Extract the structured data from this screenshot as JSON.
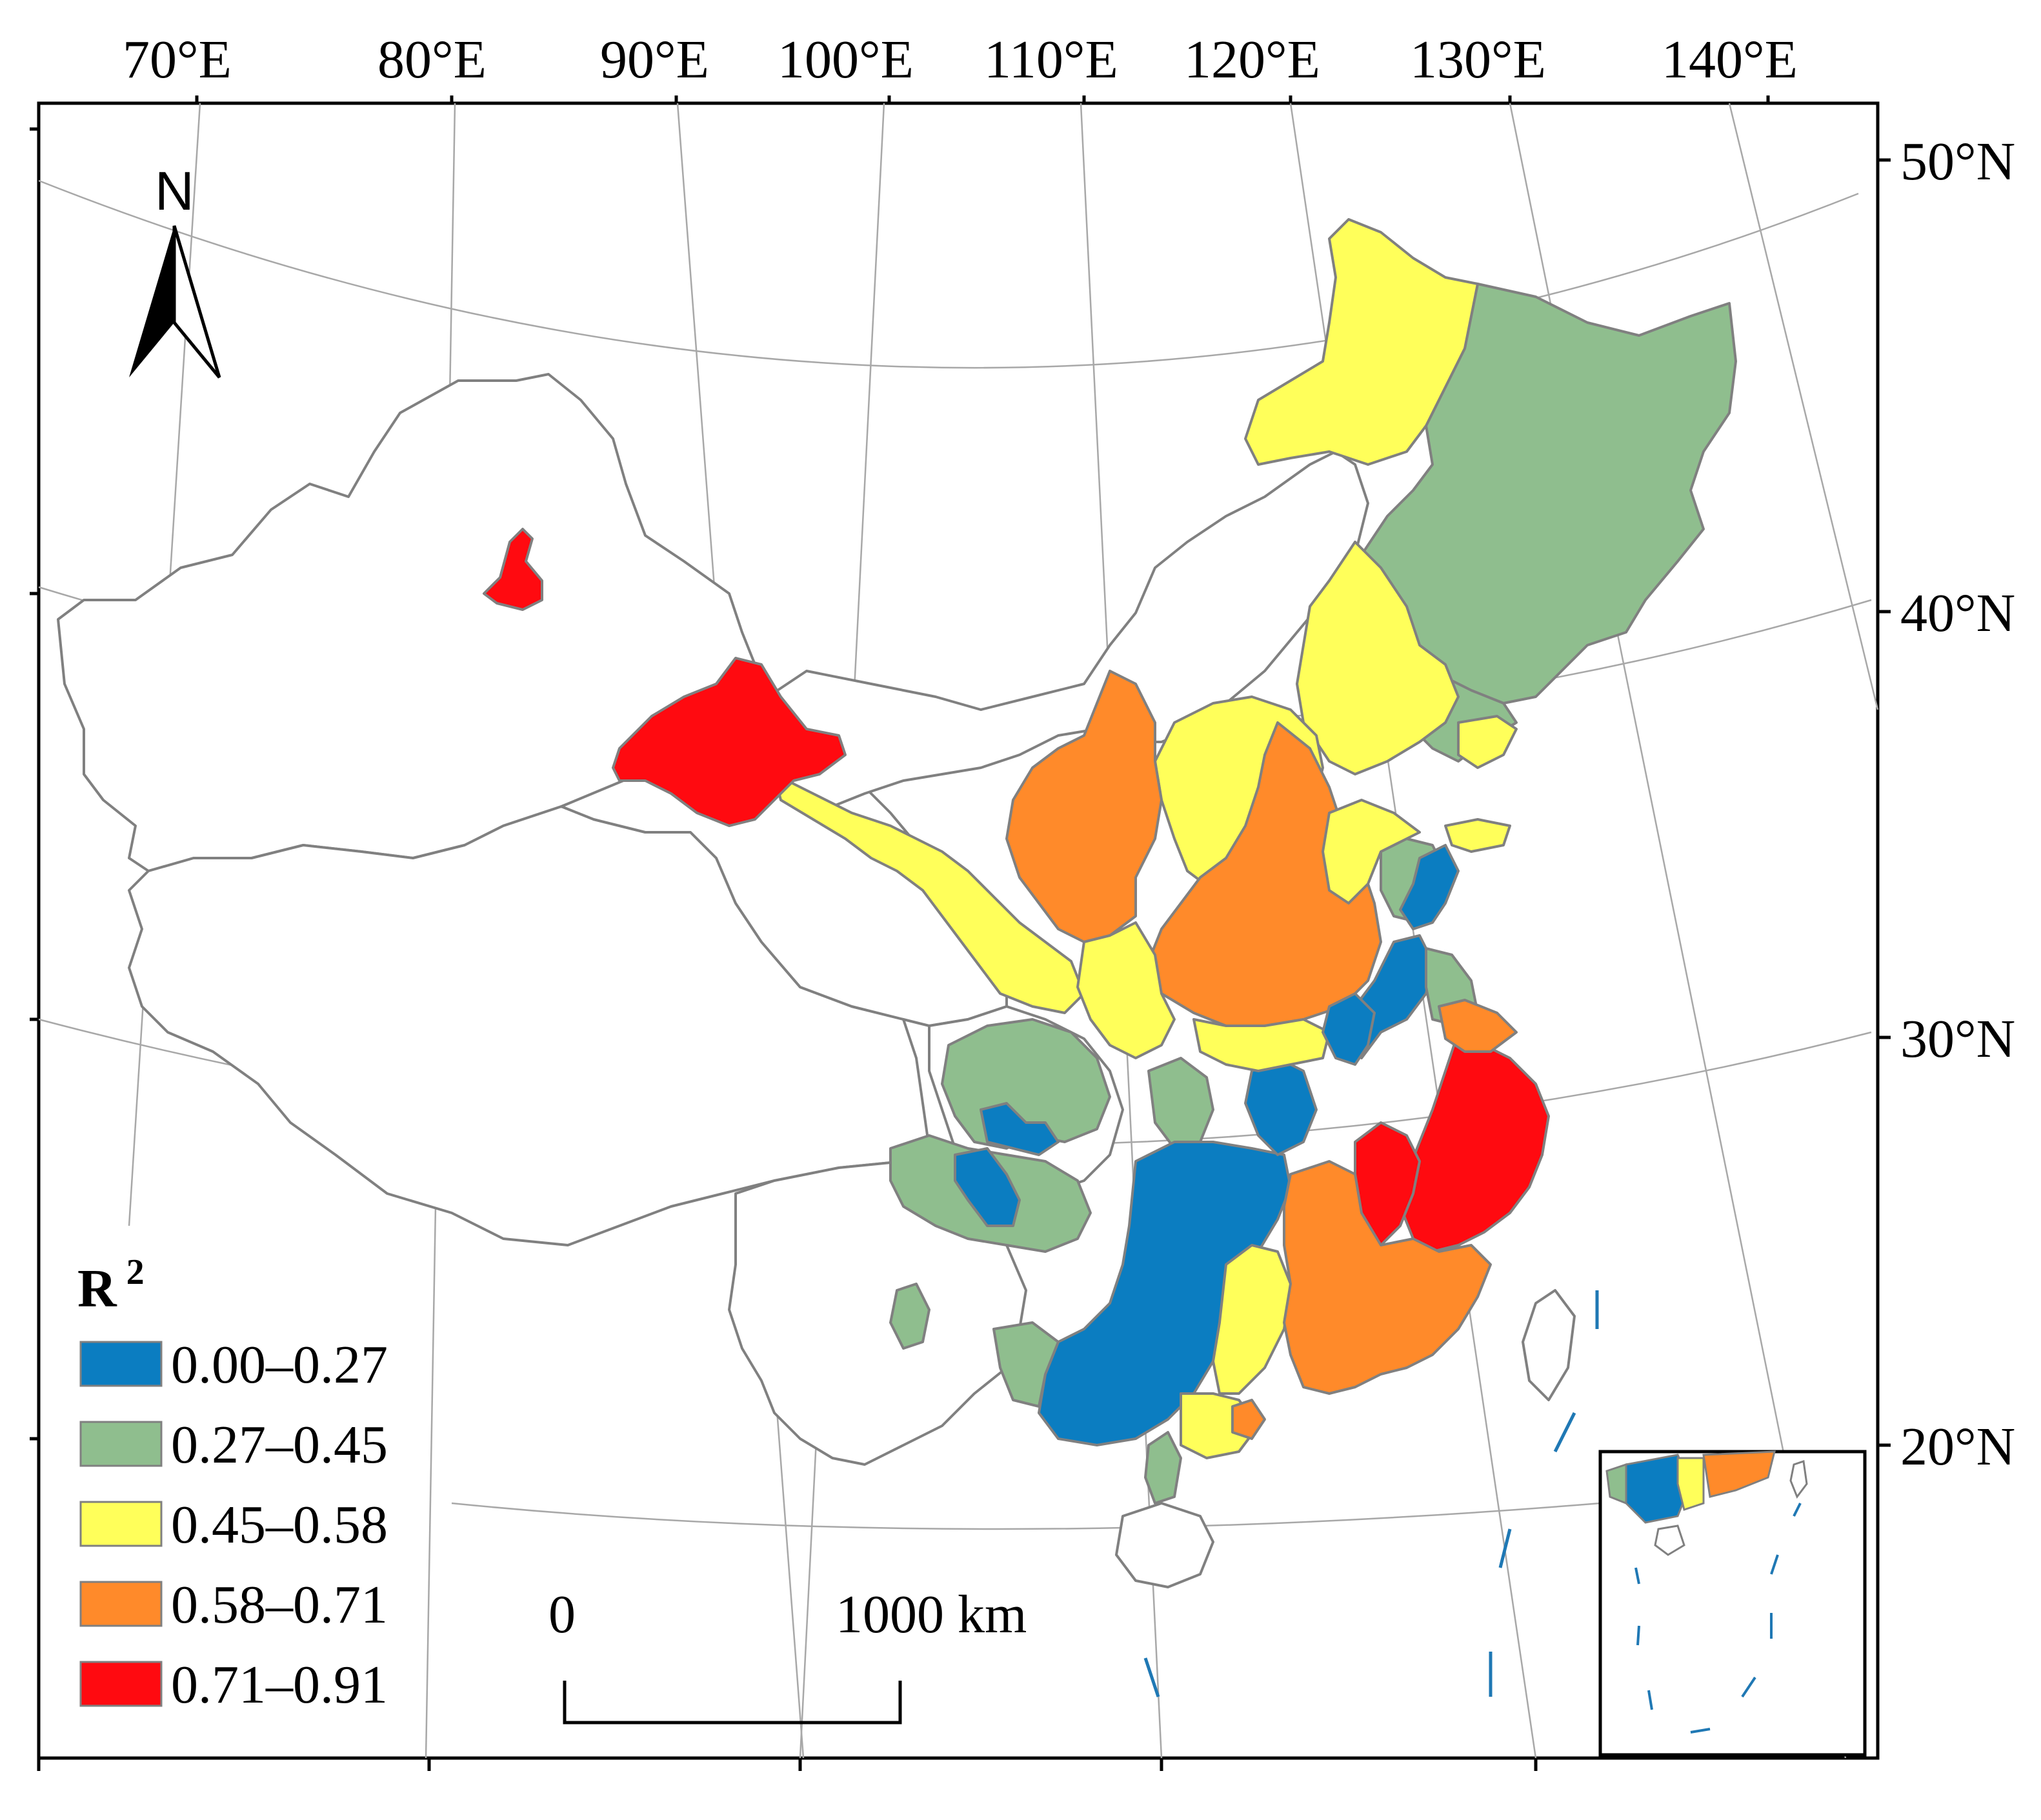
{
  "map": {
    "lon_labels": [
      "70°E",
      "80°E",
      "90°E",
      "100°E",
      "110°E",
      "120°E",
      "130°E",
      "140°E"
    ],
    "lat_labels": [
      "50°N",
      "40°N",
      "30°N",
      "20°N"
    ],
    "north_label": "N",
    "scale_bar": {
      "start_label": "0",
      "end_label": "1000 km"
    },
    "legend": {
      "title": "R",
      "title_superscript": "2",
      "items": [
        {
          "label": "0.00–0.27",
          "color": "#0b7dc1"
        },
        {
          "label": "0.27–0.45",
          "color": "#8fbe8e"
        },
        {
          "label": "0.45–0.58",
          "color": "#ffff5a"
        },
        {
          "label": "0.58–0.71",
          "color": "#ff8a2a"
        },
        {
          "label": "0.71–0.91",
          "color": "#ff0a10"
        }
      ]
    },
    "boundary_color": "#808080"
  }
}
